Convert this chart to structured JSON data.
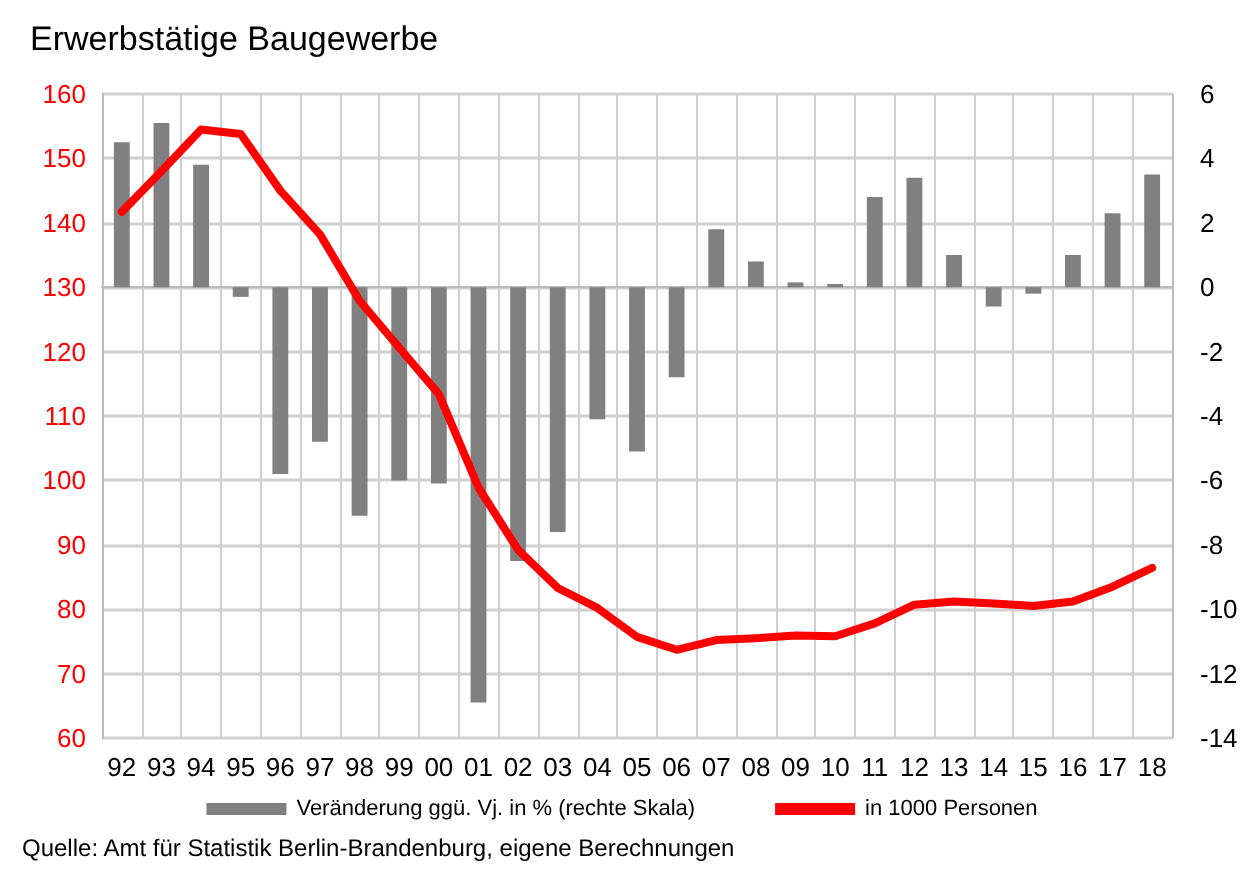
{
  "chart_data": {
    "type": "bar",
    "title": "Erwerbstätige Baugewerbe",
    "categories": [
      "92",
      "93",
      "94",
      "95",
      "96",
      "97",
      "98",
      "99",
      "00",
      "01",
      "02",
      "03",
      "04",
      "05",
      "06",
      "07",
      "08",
      "09",
      "10",
      "11",
      "12",
      "13",
      "14",
      "15",
      "16",
      "17",
      "18"
    ],
    "series": [
      {
        "name": "Veränderung ggü. Vj. in % (rechte Skala)",
        "axis": "y2",
        "color": "#808080",
        "values": [
          4.5,
          5.1,
          3.8,
          -0.3,
          -5.8,
          -4.8,
          -7.1,
          -6.0,
          -6.1,
          -12.9,
          -8.5,
          -7.6,
          -4.1,
          -5.1,
          -2.8,
          1.8,
          0.8,
          0.15,
          0.1,
          2.8,
          3.4,
          1.0,
          -0.6,
          -0.2,
          1.0,
          2.3,
          3.5
        ]
      },
      {
        "name": "in 1000 Personen",
        "type": "line",
        "color": "#ff0000",
        "values": [
          141.7,
          148,
          154.5,
          153.8,
          145,
          138.2,
          127.9,
          120.6,
          113.4,
          98.9,
          89.2,
          83.3,
          80.2,
          75.7,
          73.7,
          75.2,
          75.5,
          75.9,
          75.8,
          77.8,
          80.7,
          81.2,
          80.9,
          80.5,
          81.2,
          83.5,
          86.4
        ]
      }
    ],
    "ylim": [
      60,
      160
    ],
    "yticks": [
      60,
      70,
      80,
      90,
      100,
      110,
      120,
      130,
      140,
      150,
      160
    ],
    "y2lim": [
      -14,
      6
    ],
    "y2ticks": [
      -14,
      -12,
      -10,
      -8,
      -6,
      -4,
      -2,
      0,
      2,
      4,
      6
    ],
    "grid": true,
    "legend": "bottom",
    "marker": "none",
    "line_style": "solid",
    "annotations": [
      "Quelle: Amt für Statistik Berlin-Brandenburg, eigene Berechnungen"
    ]
  }
}
